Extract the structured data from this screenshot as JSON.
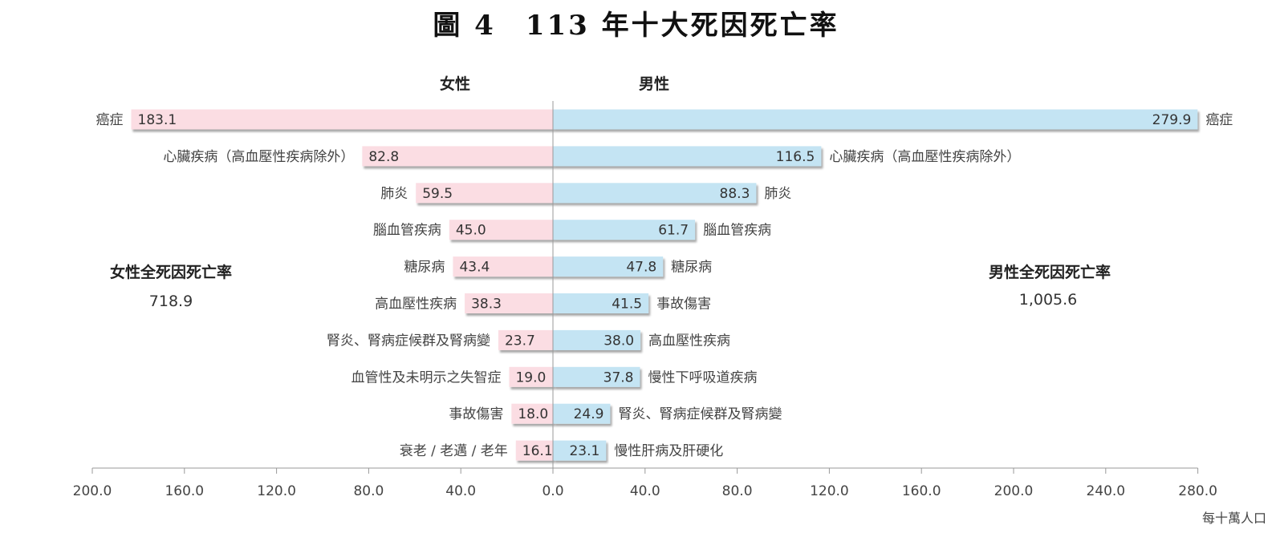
{
  "title": "圖 4　113 年十大死因死亡率",
  "chart_data": {
    "type": "bar",
    "orientation": "horizontal-diverging",
    "female": {
      "header": "女性",
      "total_label": "女性全死因死亡率",
      "total_value": "718.9",
      "color": "#fbdde3",
      "categories": [
        "癌症",
        "心臟疾病（高血壓性疾病除外）",
        "肺炎",
        "腦血管疾病",
        "糖尿病",
        "高血壓性疾病",
        "腎炎、腎病症候群及腎病變",
        "血管性及未明示之失智症",
        "事故傷害",
        "衰老 / 老邁 / 老年"
      ],
      "values": [
        183.1,
        82.8,
        59.5,
        45.0,
        43.4,
        38.3,
        23.7,
        19.0,
        18.0,
        16.1
      ],
      "labels": [
        "183.1",
        "82.8",
        "59.5",
        "45.0",
        "43.4",
        "38.3",
        "23.7",
        "19.0",
        "18.0",
        "16.1"
      ]
    },
    "male": {
      "header": "男性",
      "total_label": "男性全死因死亡率",
      "total_value": "1,005.6",
      "color": "#c4e4f3",
      "categories": [
        "癌症",
        "心臟疾病（高血壓性疾病除外）",
        "肺炎",
        "腦血管疾病",
        "糖尿病",
        "事故傷害",
        "高血壓性疾病",
        "慢性下呼吸道疾病",
        "腎炎、腎病症候群及腎病變",
        "慢性肝病及肝硬化"
      ],
      "values": [
        279.9,
        116.5,
        88.3,
        61.7,
        47.8,
        41.5,
        38.0,
        37.8,
        24.9,
        23.1
      ],
      "labels": [
        "279.9",
        "116.5",
        "88.3",
        "61.7",
        "47.8",
        "41.5",
        "38.0",
        "37.8",
        "24.9",
        "23.1"
      ]
    },
    "female_ticks": [
      "200.0",
      "160.0",
      "120.0",
      "80.0",
      "40.0",
      "0.0"
    ],
    "male_ticks": [
      "40.0",
      "80.0",
      "120.0",
      "160.0",
      "200.0",
      "240.0",
      "280.0"
    ],
    "female_axis_max": 200,
    "male_axis_max": 280,
    "unit": "每十萬人口",
    "grid": false,
    "legend": "none"
  }
}
